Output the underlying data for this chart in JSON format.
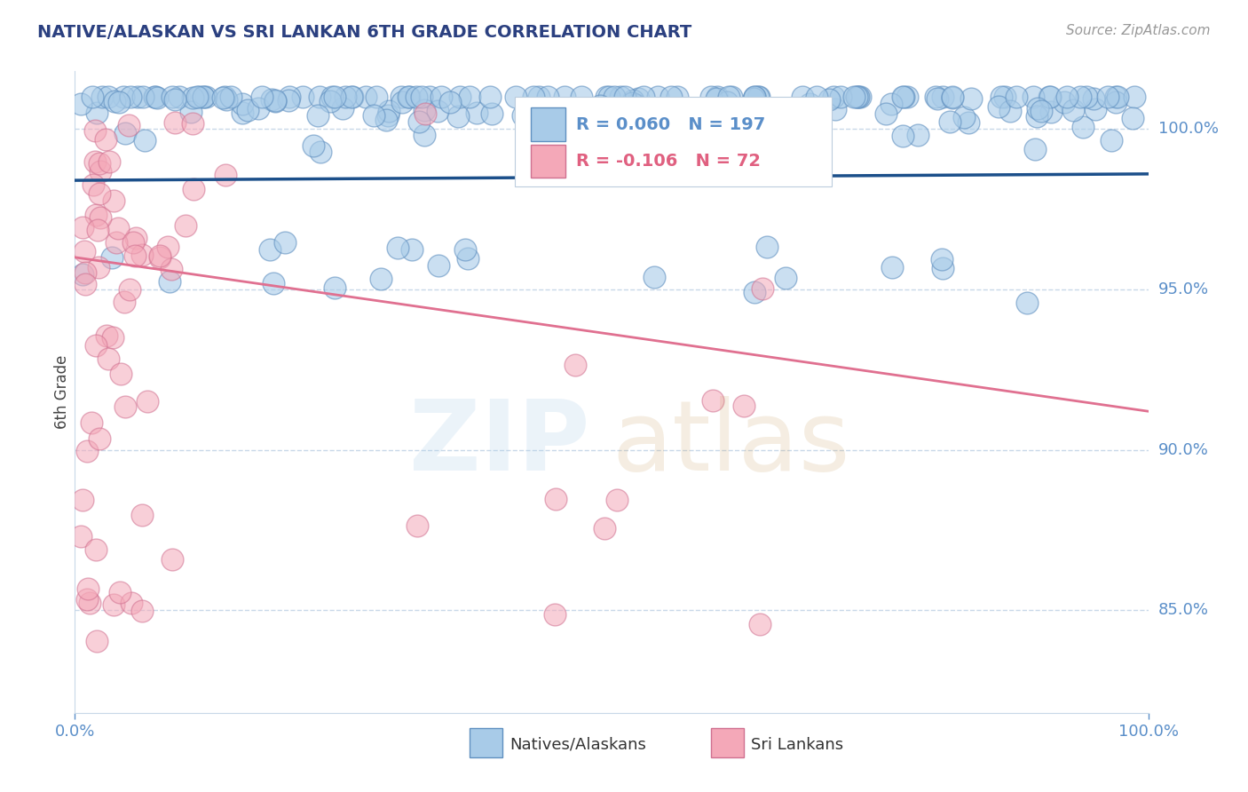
{
  "title": "NATIVE/ALASKAN VS SRI LANKAN 6TH GRADE CORRELATION CHART",
  "source_text": "Source: ZipAtlas.com",
  "ylabel": "6th Grade",
  "ytick_labels": [
    "85.0%",
    "90.0%",
    "95.0%",
    "100.0%"
  ],
  "ytick_values": [
    0.85,
    0.9,
    0.95,
    1.0
  ],
  "xlim": [
    0.0,
    1.0
  ],
  "ylim": [
    0.818,
    1.018
  ],
  "blue_R": 0.06,
  "blue_N": 197,
  "pink_R": -0.106,
  "pink_N": 72,
  "blue_color": "#A8CBE8",
  "pink_color": "#F4A8B8",
  "blue_edge_color": "#6090C0",
  "pink_edge_color": "#D07090",
  "blue_line_color": "#1B4F8A",
  "pink_line_color": "#E07090",
  "title_color": "#2B4080",
  "axis_color": "#5B8FC9",
  "watermark_color_ZIP": "#A8CBE8",
  "watermark_color_atlas": "#C8A060",
  "background_color": "#FFFFFF",
  "grid_color": "#C8D8E8",
  "blue_line_start_y": 0.984,
  "blue_line_end_y": 0.986,
  "pink_line_start_y": 0.96,
  "pink_line_end_y": 0.912,
  "seed_blue": 42,
  "seed_pink": 99
}
